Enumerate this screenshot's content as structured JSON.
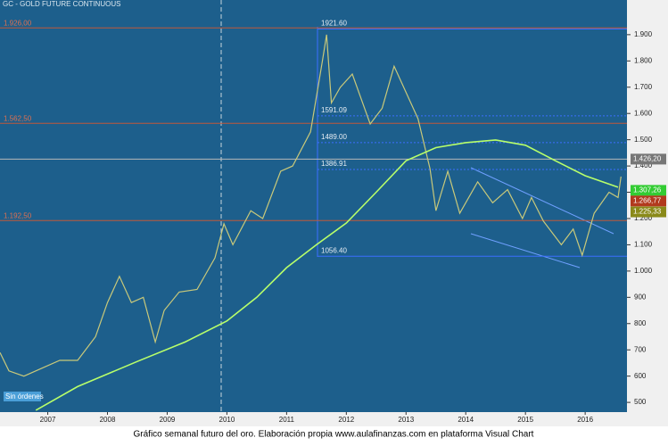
{
  "header": {
    "title": "GC - GOLD FUTURE CONTINUOUS"
  },
  "chart_data": {
    "type": "line",
    "xlim": [
      2006.2,
      2016.7
    ],
    "xticks": [
      2007,
      2008,
      2009,
      2010,
      2011,
      2012,
      2013,
      2014,
      2015,
      2016
    ],
    "ylim": [
      463,
      2032
    ],
    "yticks": [
      500,
      600,
      700,
      800,
      900,
      {
        "value": 1000,
        "label": "1.000"
      },
      {
        "value": 1100,
        "label": "1.100"
      },
      {
        "value": 1200,
        "label": "1.200"
      },
      {
        "value": 1300,
        "label": "1.300"
      },
      {
        "value": 1400,
        "label": "1.400"
      },
      {
        "value": 1500,
        "label": "1.500"
      },
      {
        "value": 1600,
        "label": "1.600"
      },
      {
        "value": 1700,
        "label": "1.700"
      },
      {
        "value": 1800,
        "label": "1.800"
      },
      {
        "value": 1900,
        "label": "1.900"
      }
    ],
    "series": [
      {
        "color": "#c9c97a",
        "x": [
          2006.2,
          2006.35,
          2006.6,
          2006.9,
          2007.2,
          2007.5,
          2007.8,
          2008.0,
          2008.2,
          2008.4,
          2008.6,
          2008.8,
          2008.95,
          2009.2,
          2009.5,
          2009.8,
          2009.95,
          2010.1,
          2010.4,
          2010.6,
          2010.9,
          2011.1,
          2011.4,
          2011.6,
          2011.67,
          2011.75,
          2011.9,
          2012.1,
          2012.4,
          2012.6,
          2012.8,
          2013.0,
          2013.2,
          2013.4,
          2013.5,
          2013.7,
          2013.9,
          2014.2,
          2014.45,
          2014.7,
          2014.95,
          2015.1,
          2015.3,
          2015.6,
          2015.8,
          2015.95,
          2016.15,
          2016.4,
          2016.55,
          2016.6
        ],
        "values": [
          690,
          620,
          600,
          630,
          660,
          660,
          750,
          880,
          980,
          880,
          900,
          730,
          850,
          920,
          930,
          1050,
          1180,
          1100,
          1230,
          1200,
          1380,
          1400,
          1530,
          1800,
          1900,
          1640,
          1700,
          1750,
          1560,
          1620,
          1780,
          1680,
          1580,
          1390,
          1230,
          1380,
          1220,
          1340,
          1260,
          1310,
          1200,
          1280,
          1190,
          1100,
          1160,
          1060,
          1220,
          1300,
          1280,
          1360
        ]
      },
      {
        "color": "#b8ff6a",
        "x": [
          2006.8,
          2007.5,
          2008.5,
          2009.3,
          2010.0,
          2010.5,
          2011.0,
          2011.5,
          2012.0,
          2012.5,
          2013.0,
          2013.5,
          2014.0,
          2014.5,
          2015.0,
          2015.5,
          2016.0,
          2016.55
        ],
        "values": [
          470,
          560,
          656,
          730,
          810,
          900,
          1013,
          1100,
          1183,
          1300,
          1420,
          1470,
          1489,
          1499,
          1479,
          1420,
          1363,
          1319
        ]
      }
    ],
    "reference_lines": [
      {
        "value": 1926,
        "label": "1.926,00"
      },
      {
        "value": 1562.5,
        "label": "1.562,50"
      },
      {
        "value": 1192.5,
        "label": "1.192,50"
      }
    ],
    "retracement_levels": [
      {
        "value": 1921.6,
        "label": "1921.60"
      },
      {
        "value": 1591.09,
        "label": "1591.09"
      },
      {
        "value": 1489,
        "label": "1489.00"
      },
      {
        "value": 1386.91,
        "label": "1386.91"
      },
      {
        "value": 1056.4,
        "label": "1056.40"
      }
    ],
    "last_price": {
      "value": 1426.2,
      "label": "1.426,20"
    },
    "price_tags": [
      {
        "value": 1307.26,
        "label": "1.307,26",
        "color": "#33cc33"
      },
      {
        "value": 1266.77,
        "label": "1.266,77",
        "color": "#b23a1e"
      },
      {
        "value": 1225.33,
        "label": "1.225,33",
        "color": "#8a8a1a"
      }
    ]
  },
  "status": "Sin órdenes",
  "caption": "Gráfico semanal futuro del oro. Elaboración propia www.aulafinanzas.com  en plataforma Visual Chart"
}
